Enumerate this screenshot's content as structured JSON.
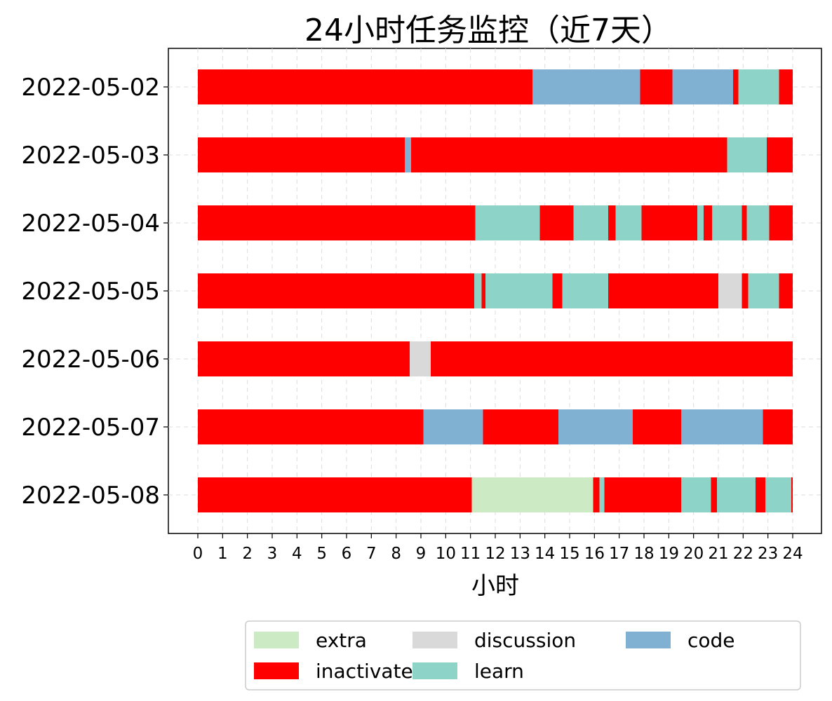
{
  "chart_data": {
    "type": "bar",
    "orientation": "horizontal-stacked",
    "title": "24小时任务监控（近7天）",
    "xlabel": "小时",
    "ylabel": "",
    "xlim": [
      0,
      24
    ],
    "x_ticks": [
      "0",
      "1",
      "2",
      "3",
      "4",
      "5",
      "6",
      "7",
      "8",
      "9",
      "10",
      "11",
      "12",
      "13",
      "14",
      "15",
      "16",
      "17",
      "18",
      "19",
      "20",
      "21",
      "22",
      "23",
      "24"
    ],
    "grid": true,
    "legend_position": "bottom-right",
    "colors": {
      "extra": "#ccebc5",
      "learn": "#8dd3c7",
      "inactivate": "#ff0000",
      "code": "#80b1d3",
      "discussion": "#d9d9d9"
    },
    "legend": [
      {
        "key": "extra",
        "label": "extra"
      },
      {
        "key": "inactivate",
        "label": "inactivate"
      },
      {
        "key": "discussion",
        "label": "discussion"
      },
      {
        "key": "learn",
        "label": "learn"
      },
      {
        "key": "code",
        "label": "code"
      }
    ],
    "days": [
      {
        "date": "2022-05-02",
        "segments": [
          {
            "start": 0,
            "end": 13.5,
            "category": "inactivate"
          },
          {
            "start": 13.5,
            "end": 17.85,
            "category": "code"
          },
          {
            "start": 17.85,
            "end": 19.15,
            "category": "inactivate"
          },
          {
            "start": 19.15,
            "end": 21.6,
            "category": "code"
          },
          {
            "start": 21.6,
            "end": 21.8,
            "category": "inactivate"
          },
          {
            "start": 21.8,
            "end": 23.45,
            "category": "learn"
          },
          {
            "start": 23.45,
            "end": 24,
            "category": "inactivate"
          }
        ]
      },
      {
        "date": "2022-05-03",
        "segments": [
          {
            "start": 0,
            "end": 8.35,
            "category": "inactivate"
          },
          {
            "start": 8.35,
            "end": 8.6,
            "category": "code"
          },
          {
            "start": 8.6,
            "end": 21.35,
            "category": "inactivate"
          },
          {
            "start": 21.35,
            "end": 22.95,
            "category": "learn"
          },
          {
            "start": 22.95,
            "end": 24,
            "category": "inactivate"
          }
        ]
      },
      {
        "date": "2022-05-04",
        "segments": [
          {
            "start": 0,
            "end": 11.2,
            "category": "inactivate"
          },
          {
            "start": 11.2,
            "end": 13.8,
            "category": "learn"
          },
          {
            "start": 13.8,
            "end": 15.15,
            "category": "inactivate"
          },
          {
            "start": 15.15,
            "end": 16.55,
            "category": "learn"
          },
          {
            "start": 16.55,
            "end": 16.85,
            "category": "inactivate"
          },
          {
            "start": 16.85,
            "end": 17.9,
            "category": "learn"
          },
          {
            "start": 17.9,
            "end": 20.15,
            "category": "inactivate"
          },
          {
            "start": 20.15,
            "end": 20.4,
            "category": "learn"
          },
          {
            "start": 20.4,
            "end": 20.75,
            "category": "inactivate"
          },
          {
            "start": 20.75,
            "end": 21.95,
            "category": "learn"
          },
          {
            "start": 21.95,
            "end": 22.15,
            "category": "inactivate"
          },
          {
            "start": 22.15,
            "end": 23.05,
            "category": "learn"
          },
          {
            "start": 23.05,
            "end": 24,
            "category": "inactivate"
          }
        ]
      },
      {
        "date": "2022-05-05",
        "segments": [
          {
            "start": 0,
            "end": 11.15,
            "category": "inactivate"
          },
          {
            "start": 11.15,
            "end": 11.45,
            "category": "learn"
          },
          {
            "start": 11.45,
            "end": 11.6,
            "category": "inactivate"
          },
          {
            "start": 11.6,
            "end": 14.3,
            "category": "learn"
          },
          {
            "start": 14.3,
            "end": 14.7,
            "category": "inactivate"
          },
          {
            "start": 14.7,
            "end": 16.55,
            "category": "learn"
          },
          {
            "start": 16.55,
            "end": 21.0,
            "category": "inactivate"
          },
          {
            "start": 21.0,
            "end": 21.95,
            "category": "discussion"
          },
          {
            "start": 21.95,
            "end": 22.2,
            "category": "inactivate"
          },
          {
            "start": 22.2,
            "end": 23.45,
            "category": "learn"
          },
          {
            "start": 23.45,
            "end": 24,
            "category": "inactivate"
          }
        ]
      },
      {
        "date": "2022-05-06",
        "segments": [
          {
            "start": 0,
            "end": 8.55,
            "category": "inactivate"
          },
          {
            "start": 8.55,
            "end": 9.4,
            "category": "discussion"
          },
          {
            "start": 9.4,
            "end": 24,
            "category": "inactivate"
          }
        ]
      },
      {
        "date": "2022-05-07",
        "segments": [
          {
            "start": 0,
            "end": 9.1,
            "category": "inactivate"
          },
          {
            "start": 9.1,
            "end": 11.5,
            "category": "code"
          },
          {
            "start": 11.5,
            "end": 14.55,
            "category": "inactivate"
          },
          {
            "start": 14.55,
            "end": 17.55,
            "category": "code"
          },
          {
            "start": 17.55,
            "end": 19.5,
            "category": "inactivate"
          },
          {
            "start": 19.5,
            "end": 22.8,
            "category": "code"
          },
          {
            "start": 22.8,
            "end": 24,
            "category": "inactivate"
          }
        ]
      },
      {
        "date": "2022-05-08",
        "segments": [
          {
            "start": 0,
            "end": 11.05,
            "category": "inactivate"
          },
          {
            "start": 11.05,
            "end": 15.95,
            "category": "extra"
          },
          {
            "start": 15.95,
            "end": 16.2,
            "category": "inactivate"
          },
          {
            "start": 16.2,
            "end": 16.4,
            "category": "learn"
          },
          {
            "start": 16.4,
            "end": 19.5,
            "category": "inactivate"
          },
          {
            "start": 19.5,
            "end": 20.7,
            "category": "learn"
          },
          {
            "start": 20.7,
            "end": 20.95,
            "category": "inactivate"
          },
          {
            "start": 20.95,
            "end": 22.5,
            "category": "learn"
          },
          {
            "start": 22.5,
            "end": 22.9,
            "category": "inactivate"
          },
          {
            "start": 22.9,
            "end": 23.95,
            "category": "learn"
          },
          {
            "start": 23.95,
            "end": 24,
            "category": "inactivate"
          }
        ]
      }
    ]
  }
}
